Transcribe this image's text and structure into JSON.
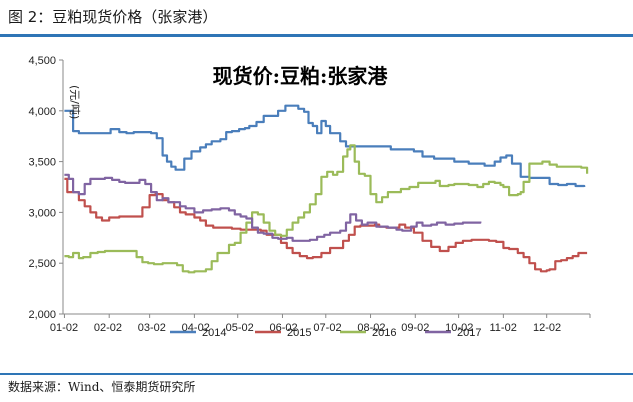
{
  "figure_title": "图 2：豆粕现货价格（张家港）",
  "source": "数据来源：Wind、恒泰期货研究所",
  "chart_data": {
    "type": "line",
    "title": "现货价:豆粕:张家港",
    "ylabel": "(元/吨)",
    "xlabel": "",
    "ylim": [
      2000,
      4500
    ],
    "y_ticks": [
      "2,000",
      "2,500",
      "3,000",
      "3,500",
      "4,000",
      "4,500"
    ],
    "y_tick_values": [
      2000,
      2500,
      3000,
      3500,
      4000,
      4500
    ],
    "x_ticks": [
      "01-02",
      "02-02",
      "03-02",
      "04-02",
      "05-02",
      "06-02",
      "07-02",
      "08-02",
      "09-02",
      "10-02",
      "11-02",
      "12-02"
    ],
    "x_domain": [
      1,
      366
    ],
    "grid": false,
    "legend_position": "bottom",
    "series": [
      {
        "name": "2014",
        "color": "#4a7ebb",
        "points": [
          [
            2,
            4000
          ],
          [
            6,
            4000
          ],
          [
            8,
            3800
          ],
          [
            12,
            3780
          ],
          [
            30,
            3780
          ],
          [
            34,
            3820
          ],
          [
            37,
            3820
          ],
          [
            40,
            3790
          ],
          [
            45,
            3780
          ],
          [
            50,
            3790
          ],
          [
            55,
            3790
          ],
          [
            62,
            3780
          ],
          [
            66,
            3730
          ],
          [
            70,
            3560
          ],
          [
            73,
            3500
          ],
          [
            76,
            3450
          ],
          [
            79,
            3420
          ],
          [
            82,
            3420
          ],
          [
            85,
            3530
          ],
          [
            90,
            3600
          ],
          [
            93,
            3600
          ],
          [
            96,
            3640
          ],
          [
            100,
            3670
          ],
          [
            104,
            3700
          ],
          [
            110,
            3720
          ],
          [
            114,
            3790
          ],
          [
            118,
            3800
          ],
          [
            123,
            3820
          ],
          [
            127,
            3830
          ],
          [
            130,
            3850
          ],
          [
            135,
            3890
          ],
          [
            140,
            3950
          ],
          [
            145,
            3950
          ],
          [
            150,
            4000
          ],
          [
            155,
            4050
          ],
          [
            160,
            4050
          ],
          [
            164,
            4020
          ],
          [
            168,
            3990
          ],
          [
            171,
            3880
          ],
          [
            174,
            3850
          ],
          [
            177,
            3780
          ],
          [
            180,
            3900
          ],
          [
            183,
            3850
          ],
          [
            186,
            3780
          ],
          [
            190,
            3780
          ],
          [
            193,
            3700
          ],
          [
            197,
            3650
          ],
          [
            205,
            3650
          ],
          [
            212,
            3650
          ],
          [
            220,
            3650
          ],
          [
            228,
            3620
          ],
          [
            236,
            3620
          ],
          [
            244,
            3600
          ],
          [
            250,
            3550
          ],
          [
            258,
            3530
          ],
          [
            265,
            3530
          ],
          [
            272,
            3500
          ],
          [
            282,
            3480
          ],
          [
            293,
            3460
          ],
          [
            300,
            3500
          ],
          [
            304,
            3540
          ],
          [
            308,
            3560
          ],
          [
            312,
            3480
          ],
          [
            318,
            3350
          ],
          [
            324,
            3340
          ],
          [
            330,
            3340
          ],
          [
            338,
            3280
          ],
          [
            344,
            3270
          ],
          [
            350,
            3280
          ],
          [
            356,
            3260
          ],
          [
            362,
            3250
          ]
        ]
      },
      {
        "name": "2015",
        "color": "#c0504d",
        "points": [
          [
            2,
            3330
          ],
          [
            4,
            3200
          ],
          [
            8,
            3200
          ],
          [
            12,
            3120
          ],
          [
            16,
            3060
          ],
          [
            20,
            3000
          ],
          [
            24,
            2950
          ],
          [
            28,
            2920
          ],
          [
            33,
            2950
          ],
          [
            40,
            2960
          ],
          [
            44,
            2960
          ],
          [
            50,
            2960
          ],
          [
            56,
            3050
          ],
          [
            61,
            3170
          ],
          [
            65,
            3180
          ],
          [
            70,
            3120
          ],
          [
            74,
            3100
          ],
          [
            78,
            3050
          ],
          [
            82,
            3000
          ],
          [
            86,
            2980
          ],
          [
            92,
            2950
          ],
          [
            96,
            2920
          ],
          [
            100,
            2870
          ],
          [
            105,
            2850
          ],
          [
            112,
            2850
          ],
          [
            118,
            2840
          ],
          [
            124,
            2830
          ],
          [
            130,
            2830
          ],
          [
            138,
            2820
          ],
          [
            142,
            2780
          ],
          [
            146,
            2780
          ],
          [
            152,
            2700
          ],
          [
            156,
            2650
          ],
          [
            160,
            2600
          ],
          [
            165,
            2570
          ],
          [
            170,
            2550
          ],
          [
            174,
            2560
          ],
          [
            180,
            2600
          ],
          [
            186,
            2650
          ],
          [
            190,
            2650
          ],
          [
            195,
            2720
          ],
          [
            199,
            2780
          ],
          [
            203,
            2860
          ],
          [
            207,
            2870
          ],
          [
            212,
            2870
          ],
          [
            217,
            2880
          ],
          [
            220,
            2860
          ],
          [
            225,
            2850
          ],
          [
            230,
            2850
          ],
          [
            234,
            2880
          ],
          [
            238,
            2850
          ],
          [
            244,
            2800
          ],
          [
            250,
            2720
          ],
          [
            256,
            2660
          ],
          [
            262,
            2620
          ],
          [
            268,
            2660
          ],
          [
            273,
            2700
          ],
          [
            278,
            2720
          ],
          [
            284,
            2730
          ],
          [
            290,
            2730
          ],
          [
            296,
            2720
          ],
          [
            301,
            2710
          ],
          [
            306,
            2650
          ],
          [
            310,
            2640
          ],
          [
            316,
            2600
          ],
          [
            320,
            2560
          ],
          [
            324,
            2500
          ],
          [
            328,
            2440
          ],
          [
            332,
            2420
          ],
          [
            336,
            2430
          ],
          [
            338,
            2440
          ],
          [
            342,
            2520
          ],
          [
            346,
            2530
          ],
          [
            350,
            2550
          ],
          [
            354,
            2570
          ],
          [
            358,
            2600
          ],
          [
            364,
            2600
          ]
        ]
      },
      {
        "name": "2016",
        "color": "#9bbb59",
        "points": [
          [
            2,
            2570
          ],
          [
            5,
            2560
          ],
          [
            8,
            2600
          ],
          [
            12,
            2550
          ],
          [
            15,
            2560
          ],
          [
            20,
            2600
          ],
          [
            25,
            2610
          ],
          [
            30,
            2620
          ],
          [
            38,
            2620
          ],
          [
            48,
            2620
          ],
          [
            52,
            2560
          ],
          [
            56,
            2510
          ],
          [
            60,
            2500
          ],
          [
            64,
            2490
          ],
          [
            70,
            2500
          ],
          [
            74,
            2500
          ],
          [
            80,
            2480
          ],
          [
            84,
            2420
          ],
          [
            88,
            2410
          ],
          [
            92,
            2420
          ],
          [
            96,
            2420
          ],
          [
            100,
            2440
          ],
          [
            104,
            2520
          ],
          [
            108,
            2600
          ],
          [
            112,
            2600
          ],
          [
            116,
            2680
          ],
          [
            120,
            2700
          ],
          [
            124,
            2800
          ],
          [
            128,
            2900
          ],
          [
            132,
            3000
          ],
          [
            136,
            2980
          ],
          [
            140,
            2900
          ],
          [
            144,
            2820
          ],
          [
            148,
            2780
          ],
          [
            152,
            2770
          ],
          [
            156,
            2830
          ],
          [
            160,
            2900
          ],
          [
            164,
            2950
          ],
          [
            168,
            3000
          ],
          [
            172,
            3080
          ],
          [
            176,
            3180
          ],
          [
            180,
            3350
          ],
          [
            184,
            3400
          ],
          [
            188,
            3370
          ],
          [
            191,
            3400
          ],
          [
            195,
            3550
          ],
          [
            198,
            3620
          ],
          [
            200,
            3660
          ],
          [
            203,
            3500
          ],
          [
            206,
            3380
          ],
          [
            210,
            3360
          ],
          [
            214,
            3180
          ],
          [
            218,
            3100
          ],
          [
            222,
            3150
          ],
          [
            226,
            3200
          ],
          [
            230,
            3200
          ],
          [
            235,
            3230
          ],
          [
            241,
            3250
          ],
          [
            247,
            3290
          ],
          [
            253,
            3290
          ],
          [
            259,
            3310
          ],
          [
            262,
            3260
          ],
          [
            268,
            3270
          ],
          [
            272,
            3280
          ],
          [
            276,
            3280
          ],
          [
            282,
            3270
          ],
          [
            288,
            3250
          ],
          [
            292,
            3280
          ],
          [
            296,
            3300
          ],
          [
            300,
            3290
          ],
          [
            304,
            3270
          ],
          [
            306,
            3250
          ],
          [
            310,
            3170
          ],
          [
            316,
            3180
          ],
          [
            318,
            3200
          ],
          [
            320,
            3300
          ],
          [
            324,
            3480
          ],
          [
            328,
            3480
          ],
          [
            333,
            3500
          ],
          [
            338,
            3470
          ],
          [
            343,
            3450
          ],
          [
            350,
            3450
          ],
          [
            356,
            3450
          ],
          [
            360,
            3440
          ],
          [
            364,
            3380
          ]
        ]
      },
      {
        "name": "2017",
        "color": "#8064a2",
        "points": [
          [
            2,
            3370
          ],
          [
            5,
            3330
          ],
          [
            8,
            3200
          ],
          [
            12,
            3180
          ],
          [
            16,
            3280
          ],
          [
            20,
            3330
          ],
          [
            24,
            3330
          ],
          [
            30,
            3340
          ],
          [
            35,
            3320
          ],
          [
            40,
            3300
          ],
          [
            44,
            3290
          ],
          [
            48,
            3290
          ],
          [
            54,
            3320
          ],
          [
            58,
            3280
          ],
          [
            62,
            3200
          ],
          [
            66,
            3120
          ],
          [
            70,
            3140
          ],
          [
            74,
            3100
          ],
          [
            78,
            3100
          ],
          [
            82,
            3060
          ],
          [
            86,
            3040
          ],
          [
            92,
            3000
          ],
          [
            98,
            3020
          ],
          [
            104,
            3030
          ],
          [
            110,
            3040
          ],
          [
            116,
            3020
          ],
          [
            120,
            2980
          ],
          [
            124,
            2960
          ],
          [
            128,
            2940
          ],
          [
            132,
            2850
          ],
          [
            136,
            2800
          ],
          [
            140,
            2790
          ],
          [
            146,
            2750
          ],
          [
            150,
            2740
          ],
          [
            156,
            2750
          ],
          [
            160,
            2720
          ],
          [
            166,
            2720
          ],
          [
            172,
            2730
          ],
          [
            177,
            2760
          ],
          [
            182,
            2780
          ],
          [
            186,
            2800
          ],
          [
            190,
            2800
          ],
          [
            193,
            2820
          ],
          [
            197,
            2900
          ],
          [
            200,
            2980
          ],
          [
            204,
            2920
          ],
          [
            208,
            2880
          ],
          [
            212,
            2900
          ],
          [
            218,
            2860
          ],
          [
            226,
            2850
          ],
          [
            232,
            2830
          ],
          [
            236,
            2820
          ],
          [
            242,
            2860
          ],
          [
            246,
            2900
          ],
          [
            250,
            2870
          ],
          [
            256,
            2880
          ],
          [
            260,
            2900
          ],
          [
            266,
            2880
          ],
          [
            272,
            2890
          ],
          [
            278,
            2900
          ],
          [
            284,
            2900
          ],
          [
            290,
            2910
          ]
        ]
      }
    ]
  }
}
